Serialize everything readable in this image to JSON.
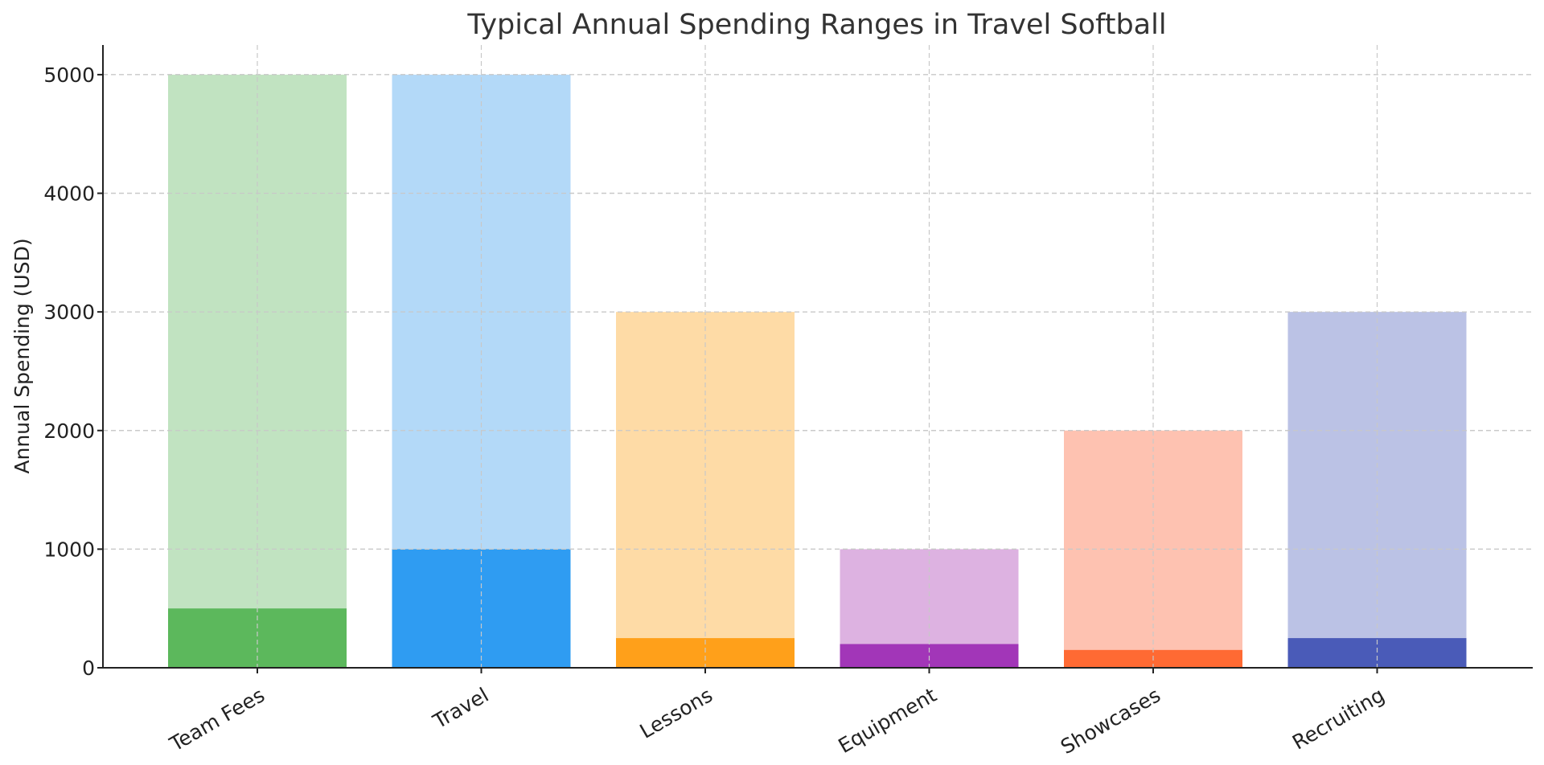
{
  "chart_data": {
    "type": "bar",
    "title": "Typical Annual Spending Ranges in Travel Softball",
    "xlabel": "",
    "ylabel": "Annual Spending (USD)",
    "ylim": [
      0,
      5250
    ],
    "yticks": [
      0,
      1000,
      2000,
      3000,
      4000,
      5000
    ],
    "grid": true,
    "categories": [
      "Team Fees",
      "Travel",
      "Lessons",
      "Equipment",
      "Showcases",
      "Recruiting"
    ],
    "series": [
      {
        "values": [
          500,
          1000,
          250,
          200,
          150,
          250
        ]
      },
      {
        "values": [
          5000,
          5000,
          3000,
          1000,
          2000,
          3000
        ]
      }
    ],
    "colors": {
      "low": [
        "#5cb85c",
        "#2f9cf2",
        "#ffa01a",
        "#a236b8",
        "#ff6a33",
        "#4a5bb8"
      ],
      "high": [
        "#c1e3c1",
        "#b3d9f8",
        "#fedba6",
        "#ddb2e1",
        "#fec2b1",
        "#bbc2e5"
      ]
    }
  }
}
